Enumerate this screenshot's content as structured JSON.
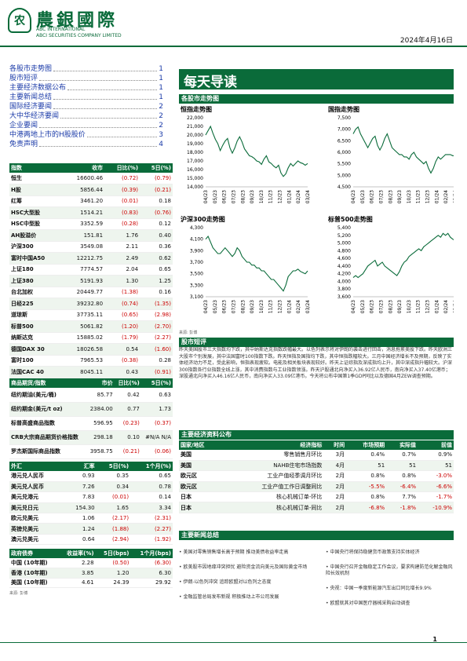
{
  "header": {
    "logo_glyph": "农",
    "name_cn": "農銀國際",
    "name_en1": "ABC INTERNATIONAL",
    "name_en2": "ABCI SECURITIES COMPANY LIMITED",
    "date": "2024年4月16日"
  },
  "toc": [
    {
      "label": "各股市走势图",
      "page": "1"
    },
    {
      "label": "股市短评",
      "page": "1"
    },
    {
      "label": "主要经济数据公布",
      "page": "1"
    },
    {
      "label": "主要新闻总结",
      "page": "1"
    },
    {
      "label": "国际经济要闻",
      "page": "2"
    },
    {
      "label": "大中华经济要闻",
      "page": "2"
    },
    {
      "label": "企业要闻",
      "page": "2"
    },
    {
      "label": "中港两地上市的H股股价",
      "page": "3"
    },
    {
      "label": "免责声明",
      "page": "4"
    }
  ],
  "banner": "每天导读",
  "charts_title": "各股市走势图",
  "indices_table": {
    "headers": [
      "指数",
      "收市",
      "日比(%)",
      "5日(%)"
    ],
    "rows": [
      [
        "恒生",
        "16600.46",
        "(0.72)",
        "(0.79)"
      ],
      [
        "H股",
        "5856.44",
        "(0.39)",
        "(0.21)"
      ],
      [
        "红筹",
        "3461.20",
        "(0.01)",
        "0.18"
      ],
      [
        "HSC大型股",
        "1514.21",
        "(0.83)",
        "(0.76)"
      ],
      [
        "HSC中型股",
        "3352.59",
        "(0.28)",
        "0.12"
      ],
      [
        "AH股溢价",
        "151.81",
        "1.76",
        "0.40"
      ],
      [
        "沪深300",
        "3549.08",
        "2.11",
        "0.36"
      ],
      [
        "富时中国A50",
        "12212.75",
        "2.49",
        "0.62"
      ],
      [
        "上证180",
        "7774.57",
        "2.04",
        "0.65"
      ],
      [
        "上证380",
        "5191.93",
        "1.30",
        "1.25"
      ],
      [
        "台北加权",
        "20449.77",
        "(1.38)",
        "0.16"
      ],
      [
        "日经225",
        "39232.80",
        "(0.74)",
        "(1.35)"
      ],
      [
        "道琼斯",
        "37735.11",
        "(0.65)",
        "(2.98)"
      ],
      [
        "标普500",
        "5061.82",
        "(1.20)",
        "(2.70)"
      ],
      [
        "纳斯达克",
        "15885.02",
        "(1.79)",
        "(2.27)"
      ],
      [
        "德国DAX 30",
        "18026.58",
        "0.54",
        "(1.60)"
      ],
      [
        "富时100",
        "7965.53",
        "(0.38)",
        "0.28"
      ],
      [
        "法国CAC 40",
        "8045.11",
        "0.43",
        "(0.91)"
      ]
    ]
  },
  "commod_table": {
    "headers": [
      "商品期货/指数",
      "市价",
      "日比(%)",
      "5日(%)"
    ],
    "rows": [
      [
        "纽约期油(美元/桶)",
        "85.77",
        "0.42",
        "0.63"
      ],
      [
        "纽约期金(美元/t oz)",
        "2384.00",
        "0.77",
        "1.73"
      ],
      [
        "标普高盛商品指数",
        "596.95",
        "(0.23)",
        "(0.37)"
      ],
      [
        "CRB大宗商品期货价格指数",
        "298.18",
        "0.10",
        "#N/A N/A"
      ],
      [
        "罗杰斯国际商品指数",
        "3958.75",
        "(0.21)",
        "(0.06)"
      ]
    ]
  },
  "fx_table": {
    "headers": [
      "外汇",
      "汇率",
      "5日(%)",
      "1个月(%)"
    ],
    "rows": [
      [
        "港元兑人民币",
        "0.93",
        "0.35",
        "0.65"
      ],
      [
        "美元兑人民币",
        "7.26",
        "0.34",
        "0.78"
      ],
      [
        "美元兑港元",
        "7.83",
        "(0.01)",
        "0.14"
      ],
      [
        "美元兑日元",
        "154.30",
        "1.65",
        "3.34"
      ],
      [
        "欧元兑美元",
        "1.06",
        "(2.17)",
        "(2.31)"
      ],
      [
        "英镑兑美元",
        "1.24",
        "(1.88)",
        "(2.27)"
      ],
      [
        "澳元兑美元",
        "0.64",
        "(2.94)",
        "(1.92)"
      ]
    ]
  },
  "bond_table": {
    "headers": [
      "政府债券",
      "收益率(%)",
      "5日(bps)",
      "1个月(bps)"
    ],
    "rows": [
      [
        "中国 (10年期)",
        "2.28",
        "(0.50)",
        "(6.30)"
      ],
      [
        "香港 (10年期)",
        "3.85",
        "1.20",
        "6.30"
      ],
      [
        "美国 (10年期)",
        "4.61",
        "24.39",
        "29.92"
      ]
    ]
  },
  "source_left": "来源: 彭博",
  "charts": [
    {
      "title": "恒指走势图",
      "y_ticks": [
        "22,000",
        "21,000",
        "20,000",
        "19,000",
        "18,000",
        "17,000",
        "16,000",
        "15,000",
        "14,000"
      ],
      "ylim": [
        14000,
        22000
      ],
      "x_ticks": [
        "04/23",
        "05/23",
        "06/23",
        "07/23",
        "08/23",
        "09/23",
        "10/23",
        "11/23",
        "12/23",
        "01/24",
        "02/24",
        "03/24"
      ],
      "values": [
        20000,
        20500,
        21000,
        20200,
        19500,
        19000,
        18200,
        18800,
        19300,
        19600,
        18500,
        17900,
        18500,
        19300,
        19800,
        19200,
        18400,
        18000,
        17600,
        17500,
        17300,
        17000,
        16900,
        16600,
        17200,
        17600,
        16900,
        16700,
        16400,
        16200,
        16500,
        15600,
        15200,
        15500,
        16200,
        16700,
        16400,
        16700,
        17000,
        16800,
        16700,
        16500,
        16700
      ]
    },
    {
      "title": "国指走势图",
      "y_ticks": [
        "7,500",
        "7,000",
        "6,500",
        "6,000",
        "5,500",
        "5,000",
        "4,500"
      ],
      "ylim": [
        4500,
        7500
      ],
      "x_ticks": [
        "04/23",
        "05/23",
        "06/23",
        "07/23",
        "08/23",
        "09/23",
        "10/23",
        "11/23",
        "12/23",
        "01/24",
        "02/24",
        "03/24"
      ],
      "values": [
        6800,
        7000,
        7100,
        6800,
        6600,
        6400,
        6200,
        6400,
        6600,
        6700,
        6300,
        6100,
        6300,
        6600,
        6800,
        6500,
        6200,
        6100,
        6000,
        5900,
        5900,
        5800,
        5800,
        5700,
        5900,
        6000,
        5800,
        5700,
        5600,
        5500,
        5600,
        5300,
        5100,
        5300,
        5600,
        5800,
        5700,
        5800,
        5900,
        5900,
        5900,
        5850,
        5860
      ]
    },
    {
      "title": "沪深300走势图",
      "y_ticks": [
        "4,300",
        "4,100",
        "3,900",
        "3,700",
        "3,500",
        "3,300",
        "3,100"
      ],
      "ylim": [
        3100,
        4300
      ],
      "x_ticks": [
        "04/23",
        "05/23",
        "06/23",
        "07/23",
        "08/23",
        "09/23",
        "10/23",
        "11/23",
        "12/23",
        "01/24",
        "02/24",
        "03/24"
      ],
      "values": [
        4100,
        4150,
        4050,
        3950,
        3900,
        3850,
        3850,
        3900,
        3950,
        3900,
        3850,
        3800,
        3850,
        3950,
        3900,
        3800,
        3750,
        3700,
        3700,
        3650,
        3650,
        3600,
        3600,
        3550,
        3550,
        3500,
        3450,
        3400,
        3400,
        3350,
        3300,
        3250,
        3200,
        3300,
        3450,
        3500,
        3550,
        3550,
        3580,
        3540,
        3520,
        3500,
        3549
      ]
    },
    {
      "title": "标普500走势图",
      "y_ticks": [
        "5,400",
        "5,200",
        "5,000",
        "4,800",
        "4,600",
        "4,400",
        "4,200",
        "4,000",
        "3,800",
        "3,600"
      ],
      "ylim": [
        3600,
        5400
      ],
      "x_ticks": [
        "04/23",
        "05/23",
        "06/23",
        "07/23",
        "08/23",
        "09/23",
        "10/23",
        "11/23",
        "12/23",
        "01/24",
        "02/24",
        "03/24"
      ],
      "values": [
        4100,
        4150,
        4100,
        4150,
        4200,
        4300,
        4400,
        4450,
        4500,
        4550,
        4400,
        4450,
        4500,
        4400,
        4350,
        4300,
        4250,
        4200,
        4150,
        4250,
        4400,
        4500,
        4550,
        4650,
        4700,
        4750,
        4800,
        4850,
        4800,
        4900,
        4950,
        5000,
        5050,
        5100,
        5150,
        5200,
        5150,
        5250,
        5200,
        5250,
        5150,
        5100,
        5062
      ]
    }
  ],
  "chart_source": "来源: 彭博",
  "market_comment_title": "股市短评",
  "market_comment": "昨天美国股市三大指数均下跌，其中纳斯达克指数跌幅最大。以色列表示将对伊朗的袭击进行回击，消息拖累美股下跌。昨天欧洲三大股市个别发展，其中法国富时100指数下跌。昨天恒指及国指均下跌，其中恒指跌幅较大。三月中国经济增长不及预期，反映了实体经济动力不足，受此影响，恒指表现疲软。电能及相关板块表现较好。昨天上证综指及深成指均上升，其中深成指升幅较大。沪深300指数各行业指数全线上涨，其中消费指数与工业指数领涨。昨天沪股通北向净买入36.92亿人民币，南向净买入37.40亿港币；深股通北向净买入46.16亿人民币，南向净买入33.09亿港币。今天将公布中国第1季GDP同比以及德国4月ZEW调查预期。",
  "econ": {
    "title": "主要经济资料公布",
    "headers": [
      "国家/地区",
      "经济指标",
      "时间",
      "市场预期",
      "实际值",
      "前值"
    ],
    "rows": [
      [
        "美国",
        "零售销售月环比",
        "3月",
        "0.4%",
        "0.7%",
        "0.9%"
      ],
      [
        "美国",
        "NAHB住宅市场指数",
        "4月",
        "51",
        "51",
        "51"
      ],
      [
        "欧元区",
        "工业产值经季调月环比",
        "2月",
        "0.8%",
        "0.8%",
        "-3.0%"
      ],
      [
        "欧元区",
        "工业产值工作日调整同比",
        "2月",
        "-5.5%",
        "-6.4%",
        "-6.6%"
      ],
      [
        "日本",
        "核心机械订单-环比",
        "2月",
        "0.8%",
        "7.7%",
        "-1.7%"
      ],
      [
        "日本",
        "核心机械订单-同比",
        "2月",
        "-6.8%",
        "-1.8%",
        "-10.9%"
      ]
    ]
  },
  "news": {
    "title": "主要新闻总结",
    "left": [
      "美国对零售销售增长高于预期 推动美债收益率走高",
      "欧美股市因地缘冲突担忧 避险资金流向美元及国际黄金市场",
      "伊朗-以色列冲突 追踪欧盟对以色列之态度",
      "金融监管总局发布新规 积极推动上市公司发展"
    ],
    "right": [
      "中国央行将保持稳健货币政策支持实体经济",
      "中国央行召开金融稳定工作会议，要求构建防范化解金融风险长效机制",
      "央视：中国一季度新能源汽车出口同比增长9.9%",
      "欧盟就其对中国医疗器械采购启动调查"
    ]
  },
  "source_bottom": "来源: 彭博",
  "page_number": "1",
  "colors": {
    "green": "#0a6b3a",
    "red": "#cc0000",
    "blue": "#1a3aa8"
  }
}
